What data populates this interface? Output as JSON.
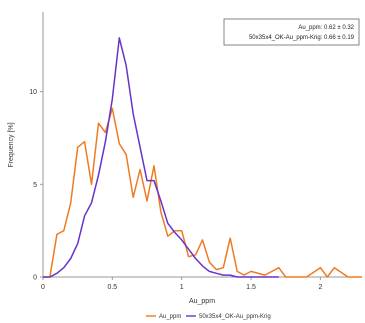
{
  "chart_data": {
    "type": "line",
    "xlabel": "Au_ppm",
    "ylabel": "Frequency [%]",
    "xlim": [
      0,
      2.3
    ],
    "ylim": [
      0,
      14.3
    ],
    "x_ticks": [
      0,
      0.5,
      1,
      1.5,
      2
    ],
    "x_tick_labels": [
      "0",
      "0.5",
      "1",
      "1.5",
      "2"
    ],
    "y_ticks": [
      0,
      5,
      10
    ],
    "y_tick_labels": [
      "0",
      "5",
      "10"
    ],
    "grid": false,
    "legend_position": "bottom",
    "stats_box": {
      "lines": [
        "Au_ppm: 0.62 ± 0.32",
        "50x35x4_OK-Au_ppm-Krig: 0.66 ± 0.19"
      ]
    },
    "series": [
      {
        "name": "Au_ppm",
        "color": "#f07a20",
        "x": [
          0.0,
          0.05,
          0.1,
          0.15,
          0.2,
          0.25,
          0.3,
          0.35,
          0.4,
          0.45,
          0.5,
          0.55,
          0.6,
          0.65,
          0.7,
          0.75,
          0.8,
          0.85,
          0.9,
          0.95,
          1.0,
          1.05,
          1.1,
          1.15,
          1.2,
          1.25,
          1.3,
          1.35,
          1.4,
          1.45,
          1.5,
          1.6,
          1.7,
          1.75,
          1.8,
          1.9,
          2.0,
          2.05,
          2.1,
          2.2,
          2.3
        ],
        "y": [
          0.0,
          0.0,
          2.3,
          2.5,
          4.0,
          7.0,
          7.3,
          5.0,
          8.3,
          7.8,
          9.1,
          7.2,
          6.6,
          4.3,
          5.8,
          4.1,
          6.0,
          3.5,
          2.2,
          2.5,
          2.5,
          1.1,
          1.2,
          2.0,
          0.8,
          0.4,
          0.5,
          2.1,
          0.3,
          0.1,
          0.3,
          0.1,
          0.5,
          0.0,
          0.0,
          0.0,
          0.5,
          0.0,
          0.5,
          0.0,
          0.0
        ]
      },
      {
        "name": "50x35x4_OK-Au_ppm-Krig",
        "color": "#6633cc",
        "x": [
          0.0,
          0.05,
          0.1,
          0.15,
          0.2,
          0.25,
          0.3,
          0.35,
          0.4,
          0.45,
          0.5,
          0.55,
          0.6,
          0.65,
          0.7,
          0.75,
          0.8,
          0.85,
          0.9,
          0.95,
          1.0,
          1.05,
          1.1,
          1.15,
          1.2,
          1.25,
          1.3,
          1.35,
          1.4,
          1.45,
          1.5,
          1.6,
          1.7
        ],
        "y": [
          0.0,
          0.0,
          0.2,
          0.5,
          1.0,
          1.8,
          3.3,
          4.0,
          5.5,
          7.3,
          9.6,
          12.9,
          11.4,
          8.8,
          7.0,
          5.2,
          5.2,
          4.1,
          2.9,
          2.4,
          2.0,
          1.5,
          1.0,
          0.6,
          0.3,
          0.2,
          0.1,
          0.1,
          0.0,
          0.0,
          0.0,
          0.0,
          0.0
        ]
      }
    ]
  }
}
